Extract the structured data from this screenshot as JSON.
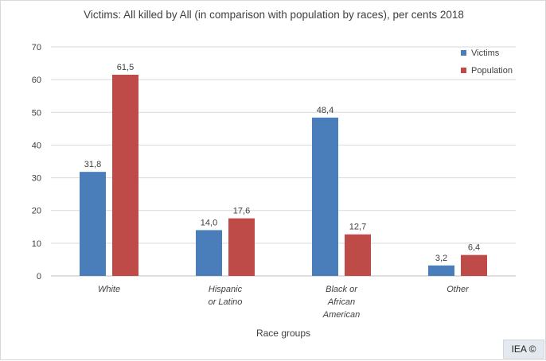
{
  "chart_data": {
    "type": "bar",
    "title": "Victims: All killed by All (in comparison with population by races), per cents 2018",
    "xlabel": "Race groups",
    "ylabel": "",
    "ylim": [
      0,
      70
    ],
    "yticks": [
      0,
      10,
      20,
      30,
      40,
      50,
      60,
      70
    ],
    "grid": true,
    "legend_position": "top-right",
    "categories": [
      [
        "White"
      ],
      [
        "Hispanic",
        "or Latino"
      ],
      [
        "Black or",
        "African",
        "American"
      ],
      [
        "Other"
      ]
    ],
    "series": [
      {
        "name": "Victims",
        "color": "#4a7ebb",
        "values": [
          31.8,
          14.0,
          48.4,
          3.2
        ],
        "labels": [
          "31,8",
          "14,0",
          "48,4",
          "3,2"
        ]
      },
      {
        "name": "Population",
        "color": "#be4b48",
        "values": [
          61.5,
          17.6,
          12.7,
          6.4
        ],
        "labels": [
          "61,5",
          "17,6",
          "12,7",
          "6,4"
        ]
      }
    ]
  },
  "credit": "IEA ©"
}
